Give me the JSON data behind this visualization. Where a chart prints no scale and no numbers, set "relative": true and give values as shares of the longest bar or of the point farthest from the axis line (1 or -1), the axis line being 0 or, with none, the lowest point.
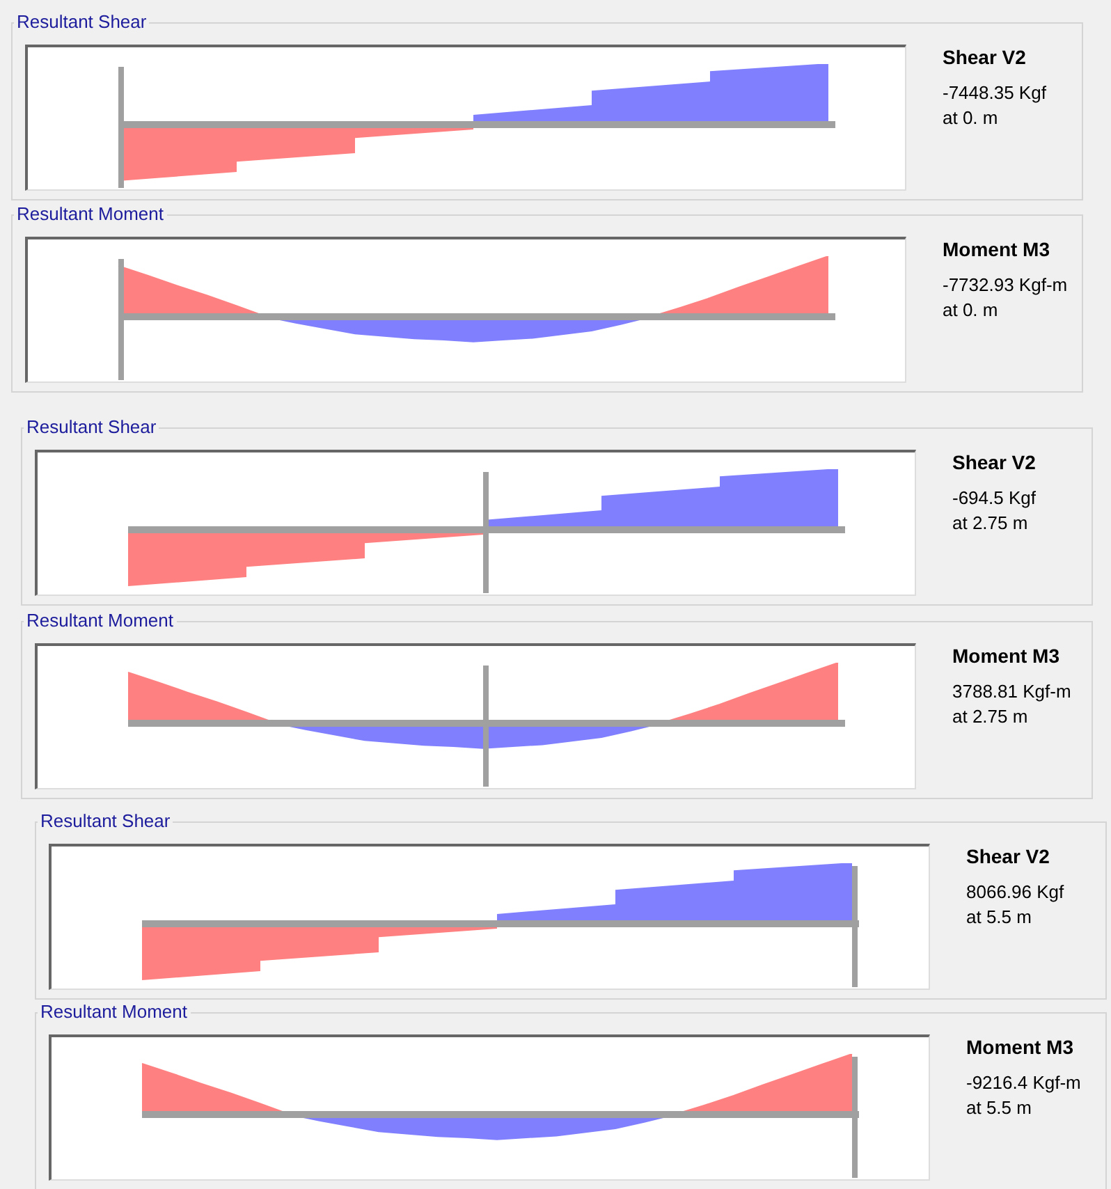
{
  "chart_data": [
    {
      "type": "area",
      "title": "Resultant Shear",
      "relative": true,
      "tick_labels": false,
      "categories": [
        null,
        null,
        null,
        null,
        null,
        null,
        null
      ],
      "series": [
        {
          "color": "#ff8080",
          "values": [
            -0.92,
            -0.77,
            null,
            null,
            null,
            null,
            null
          ]
        },
        {
          "color": "#ff8080",
          "values": [
            null,
            -0.6,
            -0.46,
            null,
            null,
            null,
            null
          ]
        },
        {
          "color": "#ff8080",
          "values": [
            null,
            null,
            -0.21,
            -0.07,
            null,
            null,
            null
          ]
        },
        {
          "color": "#8080ff",
          "values": [
            null,
            null,
            null,
            0.15,
            0.31,
            null,
            null
          ]
        },
        {
          "color": "#8080ff",
          "values": [
            null,
            null,
            null,
            null,
            0.55,
            0.7,
            null
          ]
        },
        {
          "color": "#8080ff",
          "values": [
            null,
            null,
            null,
            null,
            null,
            0.87,
            1
          ]
        }
      ],
      "annotations": [
        "Shear V2",
        "-7448.35 Kgf",
        "at 0. m"
      ]
    },
    {
      "type": "area",
      "title": "Resultant Moment",
      "relative": true,
      "tick_labels": false,
      "categories": [
        null,
        null,
        null,
        null,
        null,
        null,
        null,
        null,
        null,
        null,
        null,
        null,
        null,
        null,
        null,
        null,
        null,
        null,
        null,
        null,
        null,
        null,
        null,
        null,
        null
      ],
      "series": [
        {
          "color": "#ff8080",
          "values": [
            0.84,
            0.68,
            0.51,
            0.35,
            0.18,
            0,
            null,
            null,
            null,
            null,
            null,
            null,
            null,
            null,
            null,
            null,
            null,
            null,
            null,
            null,
            null,
            null,
            null,
            null,
            null
          ]
        },
        {
          "color": "#8080ff",
          "values": [
            null,
            null,
            null,
            null,
            null,
            0,
            -0.1,
            -0.19,
            -0.28,
            -0.32,
            -0.36,
            -0.38,
            -0.41,
            -0.38,
            -0.35,
            -0.29,
            -0.23,
            -0.12,
            0,
            null,
            null,
            null,
            null,
            null,
            null
          ]
        },
        {
          "color": "#ff8080",
          "values": [
            null,
            null,
            null,
            null,
            null,
            null,
            null,
            null,
            null,
            null,
            null,
            null,
            null,
            null,
            null,
            null,
            null,
            null,
            0,
            0.15,
            0.31,
            0.49,
            0.66,
            0.83,
            1
          ]
        }
      ],
      "annotations": [
        "Moment M3",
        "-7732.93 Kgf-m",
        "at 0. m"
      ]
    },
    {
      "type": "area",
      "title": "Resultant Shear",
      "relative": true,
      "tick_labels": false,
      "categories": [
        null,
        null,
        null,
        null,
        null,
        null,
        null
      ],
      "series": [
        {
          "color": "#ff8080",
          "values": [
            -0.92,
            -0.77,
            null,
            null,
            null,
            null,
            null
          ]
        },
        {
          "color": "#ff8080",
          "values": [
            null,
            -0.6,
            -0.46,
            null,
            null,
            null,
            null
          ]
        },
        {
          "color": "#ff8080",
          "values": [
            null,
            null,
            -0.21,
            -0.07,
            null,
            null,
            null
          ]
        },
        {
          "color": "#8080ff",
          "values": [
            null,
            null,
            null,
            0.15,
            0.31,
            null,
            null
          ]
        },
        {
          "color": "#8080ff",
          "values": [
            null,
            null,
            null,
            null,
            0.55,
            0.7,
            null
          ]
        },
        {
          "color": "#8080ff",
          "values": [
            null,
            null,
            null,
            null,
            null,
            0.87,
            1
          ]
        }
      ],
      "annotations": [
        "Shear V2",
        "-694.5 Kgf",
        "at 2.75 m"
      ]
    },
    {
      "type": "area",
      "title": "Resultant Moment",
      "relative": true,
      "tick_labels": false,
      "categories": [
        null,
        null,
        null,
        null,
        null,
        null,
        null,
        null,
        null,
        null,
        null,
        null,
        null,
        null,
        null,
        null,
        null,
        null,
        null,
        null,
        null,
        null,
        null,
        null,
        null
      ],
      "series": [
        {
          "color": "#ff8080",
          "values": [
            0.84,
            0.68,
            0.51,
            0.35,
            0.18,
            0,
            null,
            null,
            null,
            null,
            null,
            null,
            null,
            null,
            null,
            null,
            null,
            null,
            null,
            null,
            null,
            null,
            null,
            null,
            null
          ]
        },
        {
          "color": "#8080ff",
          "values": [
            null,
            null,
            null,
            null,
            null,
            0,
            -0.1,
            -0.19,
            -0.28,
            -0.32,
            -0.36,
            -0.38,
            -0.41,
            -0.38,
            -0.35,
            -0.29,
            -0.23,
            -0.12,
            0,
            null,
            null,
            null,
            null,
            null,
            null
          ]
        },
        {
          "color": "#ff8080",
          "values": [
            null,
            null,
            null,
            null,
            null,
            null,
            null,
            null,
            null,
            null,
            null,
            null,
            null,
            null,
            null,
            null,
            null,
            null,
            0,
            0.15,
            0.31,
            0.49,
            0.66,
            0.83,
            1
          ]
        }
      ],
      "annotations": [
        "Moment M3",
        "3788.81 Kgf-m",
        "at 2.75 m"
      ]
    },
    {
      "type": "area",
      "title": "Resultant Shear",
      "relative": true,
      "tick_labels": false,
      "categories": [
        null,
        null,
        null,
        null,
        null,
        null,
        null
      ],
      "series": [
        {
          "color": "#ff8080",
          "values": [
            -0.92,
            -0.77,
            null,
            null,
            null,
            null,
            null
          ]
        },
        {
          "color": "#ff8080",
          "values": [
            null,
            -0.6,
            -0.46,
            null,
            null,
            null,
            null
          ]
        },
        {
          "color": "#ff8080",
          "values": [
            null,
            null,
            -0.21,
            -0.07,
            null,
            null,
            null
          ]
        },
        {
          "color": "#8080ff",
          "values": [
            null,
            null,
            null,
            0.15,
            0.31,
            null,
            null
          ]
        },
        {
          "color": "#8080ff",
          "values": [
            null,
            null,
            null,
            null,
            0.55,
            0.7,
            null
          ]
        },
        {
          "color": "#8080ff",
          "values": [
            null,
            null,
            null,
            null,
            null,
            0.87,
            1
          ]
        }
      ],
      "annotations": [
        "Shear V2",
        "8066.96 Kgf",
        "at 5.5 m"
      ]
    },
    {
      "type": "area",
      "title": "Resultant Moment",
      "relative": true,
      "tick_labels": false,
      "categories": [
        null,
        null,
        null,
        null,
        null,
        null,
        null,
        null,
        null,
        null,
        null,
        null,
        null,
        null,
        null,
        null,
        null,
        null,
        null,
        null,
        null,
        null,
        null,
        null,
        null
      ],
      "series": [
        {
          "color": "#ff8080",
          "values": [
            0.84,
            0.68,
            0.51,
            0.35,
            0.18,
            0,
            null,
            null,
            null,
            null,
            null,
            null,
            null,
            null,
            null,
            null,
            null,
            null,
            null,
            null,
            null,
            null,
            null,
            null,
            null
          ]
        },
        {
          "color": "#8080ff",
          "values": [
            null,
            null,
            null,
            null,
            null,
            0,
            -0.1,
            -0.19,
            -0.28,
            -0.32,
            -0.36,
            -0.38,
            -0.41,
            -0.38,
            -0.35,
            -0.29,
            -0.23,
            -0.12,
            0,
            null,
            null,
            null,
            null,
            null,
            null
          ]
        },
        {
          "color": "#ff8080",
          "values": [
            null,
            null,
            null,
            null,
            null,
            null,
            null,
            null,
            null,
            null,
            null,
            null,
            null,
            null,
            null,
            null,
            null,
            null,
            0,
            0.15,
            0.31,
            0.49,
            0.66,
            0.83,
            1
          ]
        }
      ],
      "annotations": [
        "Moment M3",
        "-9216.4 Kgf-m",
        "at 5.5 m"
      ]
    }
  ]
}
